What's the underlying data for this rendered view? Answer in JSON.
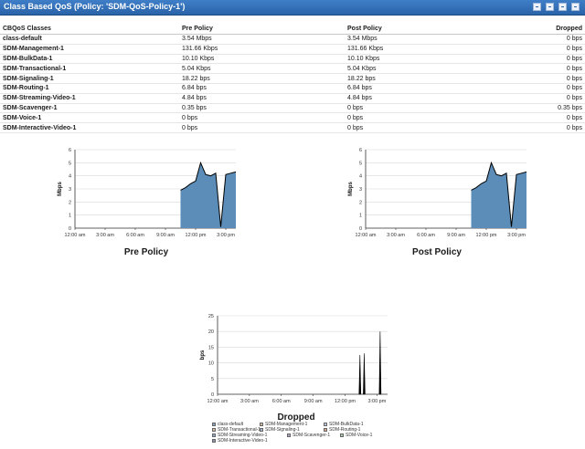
{
  "header": {
    "title": "Class Based QoS (Policy: 'SDM-QoS-Policy-1')",
    "icons": [
      "edit-icon",
      "export-icon",
      "help-icon",
      "close-icon"
    ]
  },
  "table": {
    "columns": [
      "CBQoS Classes",
      "Pre Policy",
      "Post Policy",
      "Dropped"
    ],
    "rows": [
      [
        "class-default",
        "3.54 Mbps",
        "3.54 Mbps",
        "0 bps"
      ],
      [
        "SDM-Management-1",
        "131.66 Kbps",
        "131.66 Kbps",
        "0 bps"
      ],
      [
        "SDM-BulkData-1",
        "10.10 Kbps",
        "10.10 Kbps",
        "0 bps"
      ],
      [
        "SDM-Transactional-1",
        "5.04 Kbps",
        "5.04 Kbps",
        "0 bps"
      ],
      [
        "SDM-Signaling-1",
        "18.22 bps",
        "18.22 bps",
        "0 bps"
      ],
      [
        "SDM-Routing-1",
        "6.84 bps",
        "6.84 bps",
        "0 bps"
      ],
      [
        "SDM-Streaming-Video-1",
        "4.84 bps",
        "4.84 bps",
        "0 bps"
      ],
      [
        "SDM-Scavenger-1",
        "0.35 bps",
        "0 bps",
        "0.35 bps"
      ],
      [
        "SDM-Voice-1",
        "0 bps",
        "0 bps",
        "0 bps"
      ],
      [
        "SDM-Interactive-Video-1",
        "0 bps",
        "0 bps",
        "0 bps"
      ]
    ]
  },
  "colors": {
    "accent": "#2a63a8",
    "area_fill": "#5b8db8",
    "area_line": "#000000",
    "grid": "#d8d8d8"
  },
  "chart_data": [
    {
      "type": "area",
      "title": "Pre Policy",
      "ylabel": "Mbps",
      "x_ticks": [
        "12:00 am",
        "3:00 am",
        "6:00 am",
        "9:00 am",
        "12:00 pm",
        "3:00 pm"
      ],
      "x_hours": [
        10.5,
        11,
        11.5,
        12,
        12.5,
        13,
        13.5,
        14,
        14.5,
        15,
        15.5,
        16
      ],
      "y": [
        2.9,
        3.1,
        3.4,
        3.6,
        5.0,
        4.1,
        4.0,
        4.2,
        0.1,
        4.1,
        4.2,
        4.3
      ],
      "ylim": [
        0,
        6
      ],
      "y_ticks": [
        0,
        1,
        2,
        3,
        4,
        5,
        6
      ]
    },
    {
      "type": "area",
      "title": "Post Policy",
      "ylabel": "Mbps",
      "x_ticks": [
        "12:00 am",
        "3:00 am",
        "6:00 am",
        "9:00 am",
        "12:00 pm",
        "3:00 pm"
      ],
      "x_hours": [
        10.5,
        11,
        11.5,
        12,
        12.5,
        13,
        13.5,
        14,
        14.5,
        15,
        15.5,
        16
      ],
      "y": [
        2.9,
        3.1,
        3.4,
        3.6,
        5.0,
        4.1,
        4.0,
        4.2,
        0.1,
        4.1,
        4.2,
        4.3
      ],
      "ylim": [
        0,
        6
      ],
      "y_ticks": [
        0,
        1,
        2,
        3,
        4,
        5,
        6
      ]
    },
    {
      "type": "bar",
      "title": "Dropped",
      "ylabel": "bps",
      "x_ticks": [
        "12:00 am",
        "3:00 am",
        "6:00 am",
        "9:00 am",
        "12:00 pm",
        "3:00 pm"
      ],
      "spikes": [
        {
          "hour": 13.4,
          "value": 12.5
        },
        {
          "hour": 13.8,
          "value": 13
        },
        {
          "hour": 15.3,
          "value": 20
        }
      ],
      "ylim": [
        0,
        25
      ],
      "y_ticks": [
        0,
        5,
        10,
        15,
        20,
        25
      ],
      "legend": [
        "class-default",
        "SDM-Management-1",
        "SDM-BulkData-1",
        "SDM-Transactional-1",
        "SDM-Signaling-1",
        "SDM-Routing-1",
        "SDM-Streaming-Video-1",
        "SDM-Scavenger-1",
        "SDM-Voice-1",
        "SDM-Interactive-Video-1"
      ],
      "legend_colors": [
        "#8a9fb8",
        "#c8b8a0",
        "#b8c8d8",
        "#d0c0a0",
        "#a8b8c8",
        "#d8a890",
        "#90a8c0",
        "#b0a0c0",
        "#a8c8a8",
        "#9098b0"
      ]
    }
  ]
}
